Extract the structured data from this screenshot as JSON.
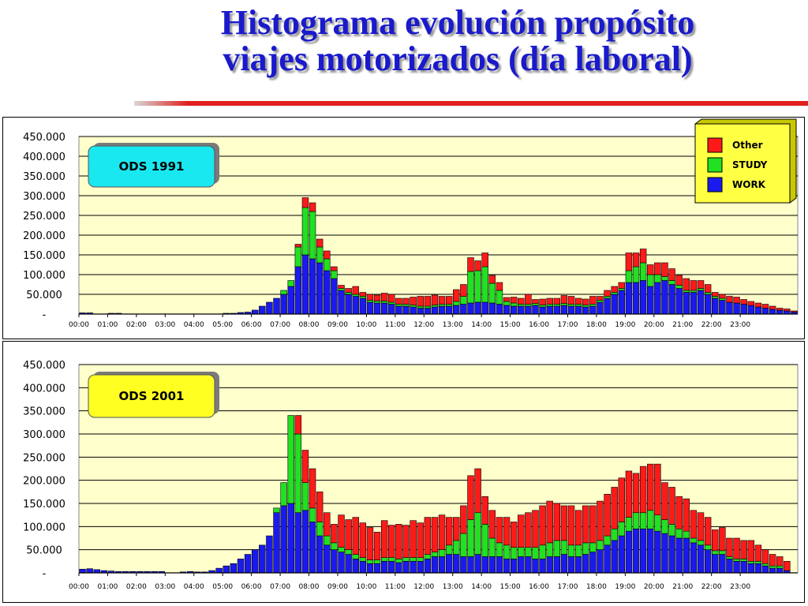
{
  "title": {
    "line1": "Histograma  evolución propósito",
    "line2": "viajes motorizados (día laboral)"
  },
  "legend": {
    "items": [
      {
        "name": "Other",
        "color": "#ff1a1a"
      },
      {
        "name": "STUDY",
        "color": "#22e022"
      },
      {
        "name": "WORK",
        "color": "#1a1aee"
      }
    ]
  },
  "colors": {
    "plot_bg": "#ffffcc",
    "legend_bg": "#ffff44",
    "label1_bg": "#1ae8f0",
    "label2_bg": "#ffff22"
  },
  "chart_data": [
    {
      "type": "bar",
      "stacked": true,
      "label": "ODS 1991",
      "ylim": [
        0,
        450000
      ],
      "yticks": [
        "450.000",
        "400.000",
        "350.000",
        "300.000",
        "250.000",
        "200.000",
        "150.000",
        "100.000",
        "50.000",
        "-"
      ],
      "ytick_values": [
        450000,
        400000,
        350000,
        300000,
        250000,
        200000,
        150000,
        100000,
        50000,
        0
      ],
      "xticks": [
        "00:00",
        "01:00",
        "02:00",
        "03:00",
        "04:00",
        "05:00",
        "06:00",
        "07:00",
        "08:00",
        "09:00",
        "10:00",
        "11:00",
        "12:00",
        "13:00",
        "14:00",
        "15:00",
        "16:00",
        "17:00",
        "18:00",
        "19:00",
        "20:00",
        "21:00",
        "22:00",
        "23:00"
      ],
      "bins_per_hour": 4,
      "grid": true,
      "legend_position": "top-right",
      "series": [
        {
          "name": "WORK",
          "values": [
            3000,
            3000,
            0,
            0,
            2000,
            2000,
            0,
            0,
            0,
            0,
            0,
            0,
            0,
            0,
            0,
            0,
            0,
            0,
            0,
            0,
            2000,
            2000,
            4000,
            5000,
            10000,
            20000,
            30000,
            40000,
            50000,
            70000,
            120000,
            150000,
            140000,
            130000,
            110000,
            90000,
            60000,
            50000,
            45000,
            40000,
            30000,
            28000,
            28000,
            25000,
            20000,
            20000,
            18000,
            15000,
            15000,
            18000,
            20000,
            20000,
            22000,
            25000,
            28000,
            30000,
            30000,
            28000,
            25000,
            22000,
            20000,
            20000,
            20000,
            22000,
            18000,
            20000,
            20000,
            22000,
            20000,
            20000,
            18000,
            20000,
            30000,
            40000,
            50000,
            60000,
            80000,
            80000,
            85000,
            70000,
            80000,
            85000,
            75000,
            65000,
            55000,
            55000,
            60000,
            50000,
            40000,
            35000,
            30000,
            28000,
            25000,
            22000,
            18000,
            15000,
            12000,
            10000,
            8000,
            5000
          ]
        },
        {
          "name": "STUDY",
          "values": [
            0,
            0,
            0,
            0,
            0,
            0,
            0,
            0,
            0,
            0,
            0,
            0,
            0,
            0,
            0,
            0,
            0,
            0,
            0,
            0,
            0,
            0,
            0,
            0,
            0,
            0,
            0,
            0,
            10000,
            15000,
            50000,
            120000,
            120000,
            40000,
            30000,
            20000,
            5000,
            5000,
            5000,
            5000,
            5000,
            5000,
            5000,
            5000,
            5000,
            5000,
            5000,
            5000,
            5000,
            5000,
            5000,
            5000,
            10000,
            20000,
            80000,
            80000,
            90000,
            50000,
            35000,
            10000,
            8000,
            5000,
            5000,
            5000,
            5000,
            5000,
            5000,
            5000,
            5000,
            5000,
            5000,
            5000,
            5000,
            5000,
            5000,
            5000,
            30000,
            40000,
            45000,
            30000,
            20000,
            10000,
            10000,
            8000,
            5000,
            5000,
            5000,
            5000,
            5000,
            5000,
            0,
            0,
            0,
            0,
            0,
            0,
            0,
            0,
            0,
            0
          ]
        },
        {
          "name": "Other",
          "values": [
            0,
            0,
            0,
            0,
            0,
            0,
            0,
            0,
            0,
            0,
            0,
            0,
            0,
            0,
            0,
            0,
            0,
            0,
            0,
            0,
            0,
            0,
            0,
            0,
            0,
            0,
            0,
            0,
            0,
            0,
            7000,
            25000,
            22000,
            20000,
            20000,
            10000,
            8000,
            10000,
            20000,
            10000,
            15000,
            15000,
            20000,
            20000,
            15000,
            15000,
            20000,
            25000,
            25000,
            25000,
            20000,
            20000,
            30000,
            30000,
            35000,
            25000,
            35000,
            20000,
            20000,
            10000,
            15000,
            15000,
            25000,
            10000,
            15000,
            15000,
            15000,
            20000,
            20000,
            15000,
            15000,
            20000,
            10000,
            15000,
            15000,
            15000,
            45000,
            35000,
            35000,
            25000,
            30000,
            35000,
            30000,
            25000,
            30000,
            25000,
            20000,
            20000,
            10000,
            10000,
            15000,
            15000,
            12000,
            10000,
            10000,
            10000,
            8000,
            5000,
            5000,
            3000
          ]
        }
      ]
    },
    {
      "type": "bar",
      "stacked": true,
      "label": "ODS 2001",
      "ylim": [
        0,
        450000
      ],
      "yticks": [
        "450.000",
        "400.000",
        "350.000",
        "300.000",
        "250.000",
        "200.000",
        "150.000",
        "100.000",
        "50.000",
        "-"
      ],
      "ytick_values": [
        450000,
        400000,
        350000,
        300000,
        250000,
        200000,
        150000,
        100000,
        50000,
        0
      ],
      "xticks": [
        "00:00",
        "01:00",
        "02:00",
        "03:00",
        "04:00",
        "05:00",
        "06:00",
        "07:00",
        "08:00",
        "09:00",
        "10:00",
        "11:00",
        "12:00",
        "13:00",
        "14:00",
        "15:00",
        "16:00",
        "17:00",
        "18:00",
        "19:00",
        "20:00",
        "21:00",
        "22:00",
        "23:00"
      ],
      "bins_per_hour": 4,
      "grid": true,
      "legend_position": "top-right",
      "series": [
        {
          "name": "WORK",
          "values": [
            8000,
            9000,
            7000,
            5000,
            4000,
            3000,
            3000,
            3000,
            3000,
            3000,
            3000,
            3000,
            0,
            0,
            2000,
            3000,
            2000,
            2000,
            5000,
            10000,
            15000,
            20000,
            30000,
            40000,
            50000,
            60000,
            80000,
            130000,
            145000,
            150000,
            130000,
            135000,
            110000,
            80000,
            60000,
            50000,
            45000,
            40000,
            30000,
            25000,
            20000,
            20000,
            25000,
            25000,
            22000,
            25000,
            25000,
            25000,
            30000,
            35000,
            35000,
            40000,
            40000,
            35000,
            35000,
            40000,
            35000,
            35000,
            35000,
            30000,
            30000,
            35000,
            35000,
            30000,
            30000,
            35000,
            35000,
            40000,
            35000,
            35000,
            40000,
            45000,
            50000,
            60000,
            70000,
            80000,
            90000,
            95000,
            95000,
            95000,
            90000,
            85000,
            80000,
            75000,
            75000,
            65000,
            60000,
            50000,
            40000,
            40000,
            30000,
            25000,
            25000,
            20000,
            20000,
            15000,
            10000,
            10000,
            5000,
            0
          ]
        },
        {
          "name": "STUDY",
          "values": [
            0,
            0,
            0,
            0,
            0,
            0,
            0,
            0,
            0,
            0,
            0,
            0,
            0,
            0,
            0,
            0,
            0,
            0,
            0,
            0,
            0,
            0,
            0,
            0,
            0,
            0,
            0,
            10000,
            50000,
            190000,
            170000,
            60000,
            30000,
            30000,
            20000,
            15000,
            10000,
            10000,
            10000,
            8000,
            8000,
            8000,
            8000,
            8000,
            8000,
            8000,
            8000,
            8000,
            10000,
            10000,
            15000,
            20000,
            30000,
            50000,
            80000,
            90000,
            70000,
            40000,
            30000,
            30000,
            25000,
            20000,
            20000,
            25000,
            30000,
            30000,
            35000,
            30000,
            25000,
            25000,
            25000,
            20000,
            20000,
            20000,
            25000,
            30000,
            30000,
            35000,
            35000,
            40000,
            35000,
            30000,
            25000,
            20000,
            15000,
            10000,
            10000,
            10000,
            8000,
            8000,
            5000,
            5000,
            5000,
            5000,
            5000,
            5000,
            5000,
            5000,
            0,
            0
          ]
        },
        {
          "name": "Other",
          "values": [
            0,
            0,
            0,
            0,
            0,
            0,
            0,
            0,
            0,
            0,
            0,
            0,
            0,
            0,
            0,
            0,
            0,
            0,
            0,
            0,
            0,
            0,
            0,
            0,
            0,
            0,
            0,
            0,
            0,
            0,
            40000,
            70000,
            85000,
            65000,
            50000,
            40000,
            70000,
            65000,
            80000,
            75000,
            70000,
            60000,
            80000,
            70000,
            75000,
            70000,
            80000,
            75000,
            80000,
            75000,
            75000,
            60000,
            50000,
            60000,
            95000,
            95000,
            60000,
            60000,
            55000,
            60000,
            55000,
            70000,
            75000,
            80000,
            85000,
            90000,
            80000,
            75000,
            85000,
            75000,
            80000,
            80000,
            85000,
            90000,
            90000,
            95000,
            100000,
            85000,
            100000,
            100000,
            110000,
            80000,
            80000,
            70000,
            70000,
            60000,
            60000,
            60000,
            45000,
            50000,
            40000,
            45000,
            40000,
            45000,
            35000,
            30000,
            25000,
            20000,
            20000,
            0
          ]
        }
      ]
    }
  ]
}
